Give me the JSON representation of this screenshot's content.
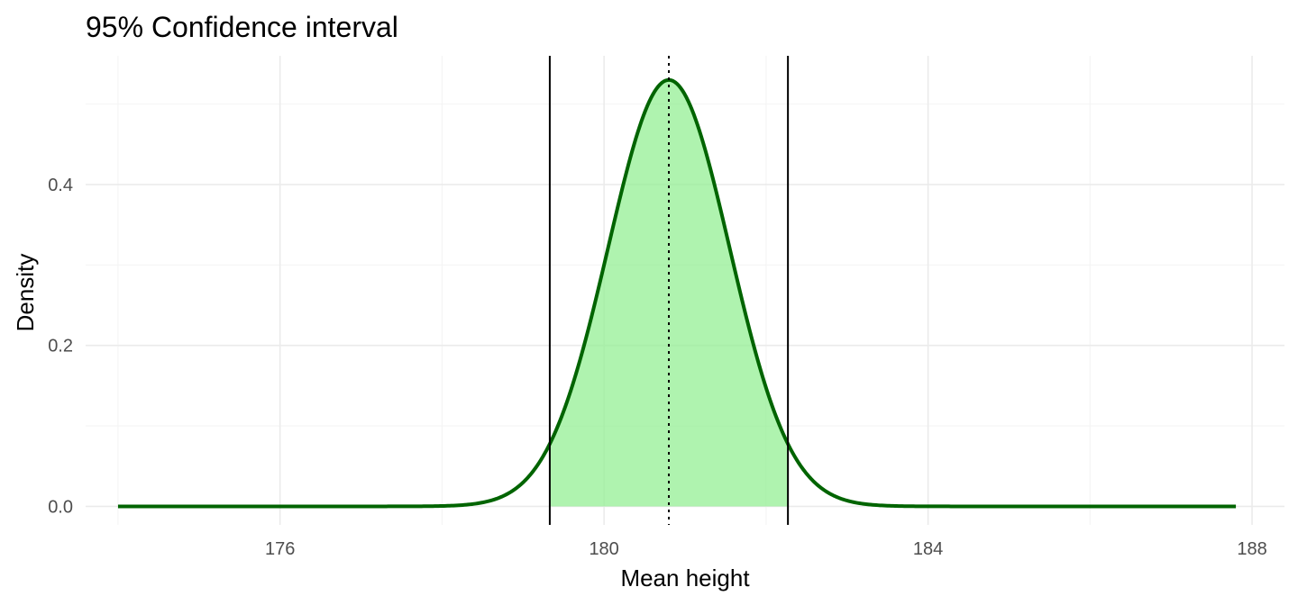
{
  "chart_data": {
    "type": "area",
    "title": "95% Confidence interval",
    "xlabel": "Mean height",
    "ylabel": "Density",
    "xlim": [
      173.6,
      188.4
    ],
    "ylim": [
      -0.023,
      0.56
    ],
    "x_ticks": [
      176,
      180,
      184,
      188
    ],
    "y_ticks": [
      0.0,
      0.2,
      0.4
    ],
    "x_tick_labels": [
      "176",
      "180",
      "184",
      "188"
    ],
    "y_tick_labels": [
      "0.0",
      "0.2",
      "0.4"
    ],
    "grid": true,
    "distribution": {
      "kind": "normal density",
      "mean": 180.8,
      "sd": 0.75,
      "x_range": [
        174,
        187.8
      ],
      "peak_density": 0.53
    },
    "shaded_interval": [
      179.33,
      182.27
    ],
    "confidence_interval": {
      "lower": 179.33,
      "upper": 182.27
    },
    "mean_line": 180.8,
    "colors": {
      "curve": "#006400",
      "fill": "#90ee90",
      "interval_lines": "#000000",
      "mean_line": "#000000"
    }
  }
}
